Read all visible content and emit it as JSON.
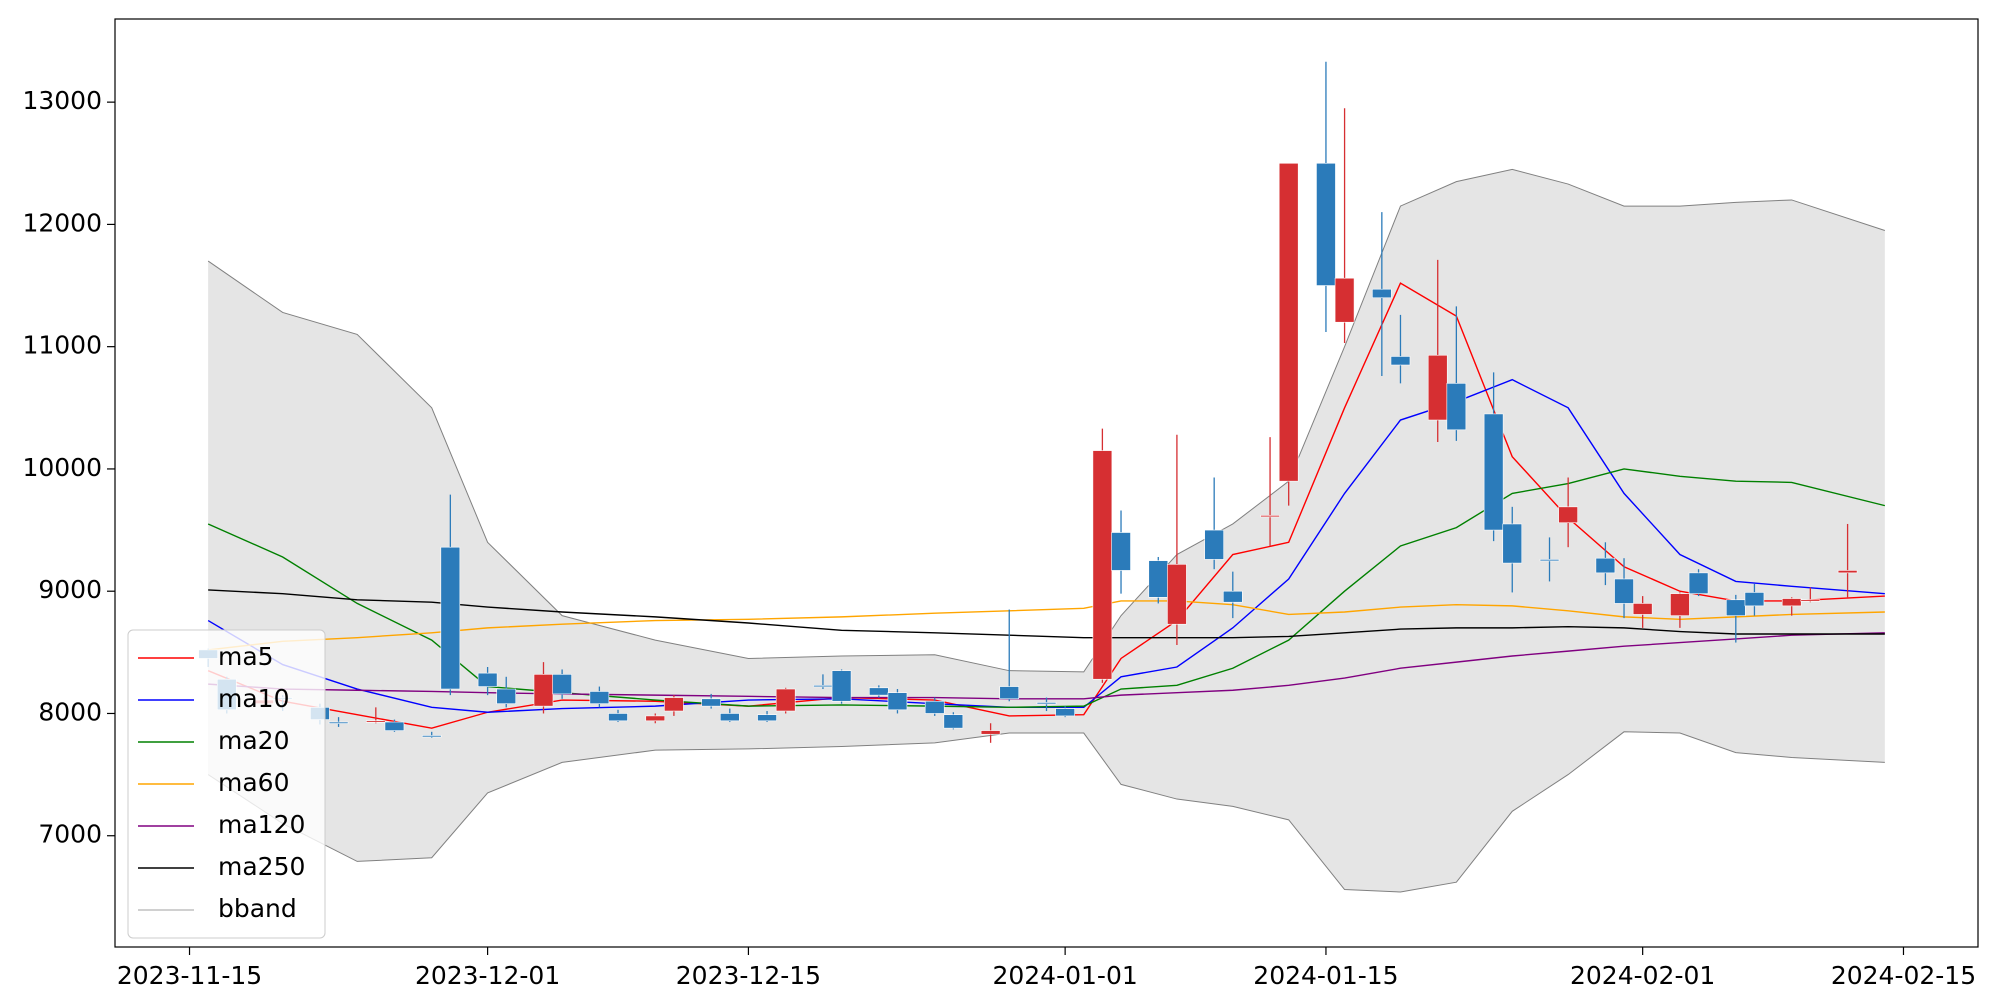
{
  "chart_data": {
    "type": "candlestick",
    "up_color": "#d62f32",
    "down_color": "#2b7bba",
    "ylim": [
      6090,
      13680
    ],
    "yticks": [
      7000,
      8000,
      9000,
      10000,
      11000,
      12000,
      13000
    ],
    "xlim": [
      "2023-11-11",
      "2024-02-19"
    ],
    "xticks": [
      "2023-11-15",
      "2023-12-01",
      "2023-12-15",
      "2024-01-01",
      "2024-01-15",
      "2024-02-01",
      "2024-02-15"
    ],
    "legend": "lower left",
    "candles": {
      "x": [
        "2023-11-16",
        "2023-11-17",
        "2023-11-19",
        "2023-11-20",
        "2023-11-22",
        "2023-11-23",
        "2023-11-25",
        "2023-11-26",
        "2023-11-28",
        "2023-11-29",
        "2023-12-01",
        "2023-12-02",
        "2023-12-04",
        "2023-12-05",
        "2023-12-07",
        "2023-12-08",
        "2023-12-10",
        "2023-12-11",
        "2023-12-13",
        "2023-12-14",
        "2023-12-16",
        "2023-12-17",
        "2023-12-19",
        "2023-12-20",
        "2023-12-22",
        "2023-12-23",
        "2023-12-25",
        "2023-12-26",
        "2023-12-28",
        "2023-12-29",
        "2023-12-31",
        "2024-01-01",
        "2024-01-03",
        "2024-01-04",
        "2024-01-06",
        "2024-01-07",
        "2024-01-09",
        "2024-01-10",
        "2024-01-12",
        "2024-01-13",
        "2024-01-15",
        "2024-01-16",
        "2024-01-18",
        "2024-01-19",
        "2024-01-21",
        "2024-01-22",
        "2024-01-24",
        "2024-01-25",
        "2024-01-27",
        "2024-01-28",
        "2024-01-30",
        "2024-01-31",
        "2024-02-01",
        "2024-02-03",
        "2024-02-04",
        "2024-02-06",
        "2024-02-07",
        "2024-02-09",
        "2024-02-10",
        "2024-02-12"
      ],
      "open": [
        8520,
        8280,
        8080,
        8130,
        8050,
        7930,
        7930,
        7930,
        7820,
        9360,
        8330,
        8200,
        8060,
        8320,
        8180,
        8000,
        7940,
        8020,
        8120,
        8000,
        7990,
        8020,
        8230,
        8350,
        8210,
        8170,
        8100,
        7990,
        7830,
        8220,
        8090,
        8040,
        8280,
        9480,
        9250,
        8730,
        9500,
        9000,
        9610,
        9900,
        12500,
        11200,
        11470,
        10920,
        10400,
        10700,
        10450,
        9550,
        9260,
        9560,
        9270,
        9100,
        8810,
        8800,
        9150,
        8930,
        8990,
        8880,
        8920,
        9150
      ],
      "high": [
        8530,
        8300,
        8130,
        8150,
        8080,
        7970,
        8050,
        7950,
        7850,
        9790,
        8380,
        8300,
        8420,
        8360,
        8220,
        8030,
        8000,
        8150,
        8160,
        8040,
        8020,
        8210,
        8320,
        8360,
        8230,
        8200,
        8130,
        8010,
        7920,
        8850,
        8130,
        8060,
        10330,
        9660,
        9280,
        10280,
        9930,
        9160,
        10260,
        12500,
        13330,
        12950,
        12100,
        11260,
        11710,
        11330,
        10790,
        9690,
        9440,
        9930,
        9400,
        9270,
        8960,
        8990,
        9180,
        8970,
        9060,
        8950,
        9030,
        9550
      ],
      "low": [
        8380,
        8000,
        8050,
        8020,
        7910,
        7890,
        7920,
        7850,
        7800,
        8150,
        8150,
        8050,
        8000,
        8120,
        8050,
        7930,
        7920,
        7980,
        8040,
        7930,
        7930,
        8000,
        8200,
        8080,
        8130,
        8000,
        7980,
        7870,
        7760,
        8100,
        8020,
        7970,
        8250,
        8980,
        8900,
        8560,
        9180,
        8780,
        9370,
        9700,
        11120,
        11030,
        10760,
        10700,
        10220,
        10230,
        9410,
        8990,
        9080,
        9360,
        9050,
        8780,
        8700,
        8700,
        8960,
        8580,
        8800,
        8800,
        8910,
        8950
      ],
      "close": [
        8450,
        8030,
        8110,
        8120,
        7950,
        7920,
        7940,
        7860,
        7810,
        8200,
        8220,
        8080,
        8320,
        8160,
        8080,
        7940,
        7980,
        8130,
        8060,
        7940,
        7940,
        8200,
        8220,
        8100,
        8150,
        8030,
        8000,
        7880,
        7860,
        8120,
        8080,
        7980,
        10150,
        9170,
        8950,
        9220,
        9260,
        8910,
        9620,
        12500,
        11500,
        11560,
        11400,
        10850,
        10930,
        10320,
        9500,
        9230,
        9250,
        9690,
        9150,
        8900,
        8900,
        8980,
        8980,
        8800,
        8880,
        8940,
        8930,
        9170
      ]
    },
    "line_x": [
      "2023-11-16",
      "2023-11-20",
      "2023-11-24",
      "2023-11-28",
      "2023-12-01",
      "2023-12-05",
      "2023-12-10",
      "2023-12-15",
      "2023-12-20",
      "2023-12-25",
      "2023-12-29",
      "2024-01-02",
      "2024-01-04",
      "2024-01-07",
      "2024-01-10",
      "2024-01-13",
      "2024-01-16",
      "2024-01-19",
      "2024-01-22",
      "2024-01-25",
      "2024-01-28",
      "2024-01-31",
      "2024-02-03",
      "2024-02-06",
      "2024-02-09",
      "2024-02-14"
    ],
    "series": [
      {
        "name": "ma5",
        "color": "#ff0000",
        "values": [
          8350,
          8100,
          7990,
          7880,
          8010,
          8110,
          8100,
          8060,
          8130,
          8110,
          7980,
          7990,
          8450,
          8760,
          9300,
          9400,
          10500,
          11520,
          11250,
          10100,
          9600,
          9200,
          9000,
          8920,
          8920,
          8960
        ]
      },
      {
        "name": "ma10",
        "color": "#0000ff",
        "values": [
          8760,
          8400,
          8200,
          8050,
          8010,
          8040,
          8060,
          8110,
          8120,
          8080,
          8050,
          8050,
          8300,
          8380,
          8700,
          9100,
          9800,
          10400,
          10550,
          10730,
          10500,
          9800,
          9300,
          9080,
          9040,
          8980
        ]
      },
      {
        "name": "ma20",
        "color": "#008000",
        "values": [
          9550,
          9280,
          8900,
          8600,
          8220,
          8170,
          8110,
          8060,
          8070,
          8060,
          8050,
          8060,
          8200,
          8230,
          8370,
          8600,
          9000,
          9370,
          9520,
          9800,
          9880,
          10000,
          9940,
          9900,
          9890,
          9700
        ]
      },
      {
        "name": "ma60",
        "color": "#ffa500",
        "values": [
          8520,
          8590,
          8620,
          8660,
          8700,
          8730,
          8760,
          8770,
          8790,
          8820,
          8840,
          8860,
          8920,
          8920,
          8890,
          8810,
          8830,
          8870,
          8890,
          8880,
          8840,
          8790,
          8770,
          8790,
          8810,
          8830
        ]
      },
      {
        "name": "ma120",
        "color": "#800080",
        "values": [
          8240,
          8200,
          8190,
          8180,
          8170,
          8160,
          8150,
          8140,
          8130,
          8130,
          8120,
          8120,
          8150,
          8170,
          8190,
          8230,
          8290,
          8370,
          8420,
          8470,
          8510,
          8550,
          8580,
          8610,
          8640,
          8660
        ]
      },
      {
        "name": "ma250",
        "color": "#000000",
        "values": [
          9010,
          8980,
          8930,
          8910,
          8870,
          8830,
          8790,
          8740,
          8680,
          8660,
          8640,
          8620,
          8620,
          8620,
          8620,
          8630,
          8660,
          8690,
          8700,
          8700,
          8710,
          8700,
          8670,
          8650,
          8650,
          8650
        ]
      }
    ],
    "bband": {
      "name": "bband",
      "color": "#808080",
      "fill": "#e5e5e5",
      "upper": [
        11700,
        11280,
        11100,
        10500,
        9400,
        8800,
        8600,
        8450,
        8470,
        8480,
        8350,
        8340,
        8800,
        9300,
        9550,
        9900,
        11000,
        12150,
        12350,
        12450,
        12330,
        12150,
        12150,
        12180,
        12200,
        11950
      ],
      "lower": [
        7500,
        7100,
        6790,
        6820,
        7350,
        7600,
        7700,
        7710,
        7730,
        7760,
        7840,
        7840,
        7420,
        7300,
        7240,
        7130,
        6560,
        6540,
        6620,
        7200,
        7500,
        7850,
        7840,
        7680,
        7640,
        7600
      ]
    }
  }
}
